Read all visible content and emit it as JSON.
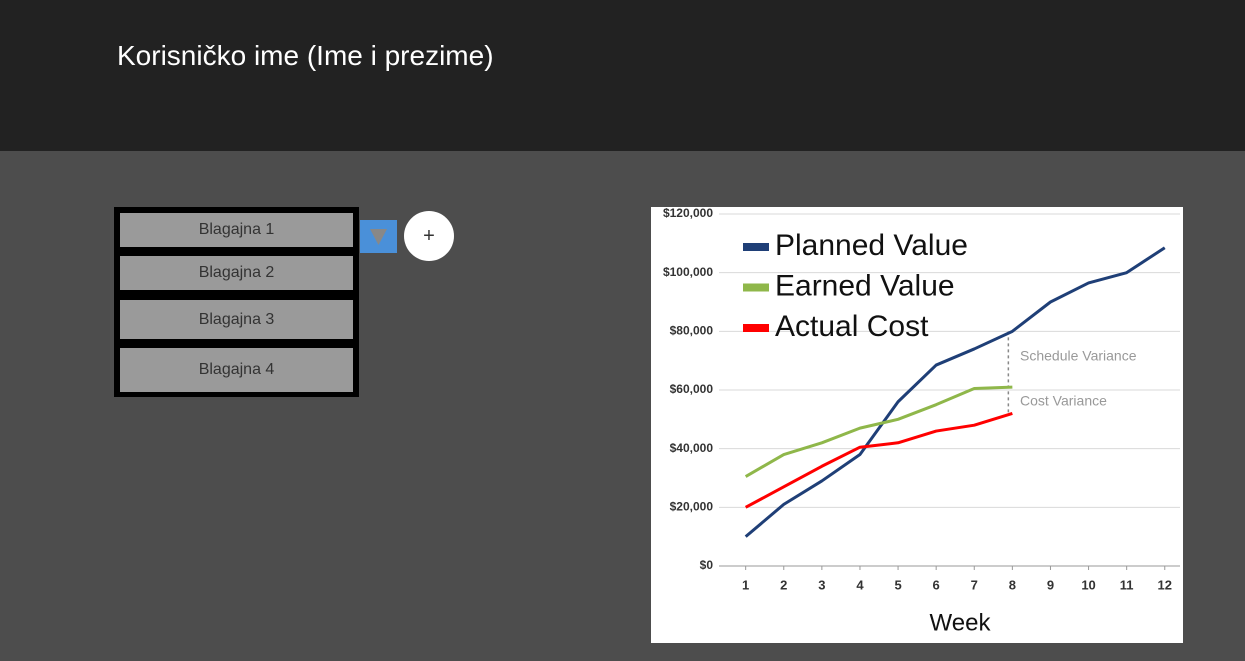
{
  "header": {
    "title": "Korisničko ime (Ime i prezime)"
  },
  "list": {
    "items": [
      "Blagajna 1",
      "Blagajna 2",
      "Blagajna 3",
      "Blagajna 4"
    ]
  },
  "add_button": "+",
  "chart_data": {
    "type": "line",
    "x_label": "Week",
    "x": [
      1,
      2,
      3,
      4,
      5,
      6,
      7,
      8,
      9,
      10,
      11,
      12
    ],
    "xlim": [
      0.3,
      12.4
    ],
    "xticks": [
      1,
      2,
      3,
      4,
      5,
      6,
      7,
      8,
      9,
      10,
      11,
      12
    ],
    "ylim": [
      0,
      120000
    ],
    "yticks": [
      {
        "value": 0,
        "label": "$0"
      },
      {
        "value": 20000,
        "label": "$20,000"
      },
      {
        "value": 40000,
        "label": "$40,000"
      },
      {
        "value": 60000,
        "label": "$60,000"
      },
      {
        "value": 80000,
        "label": "$80,000"
      },
      {
        "value": 100000,
        "label": "$100,000"
      },
      {
        "value": 120000,
        "label": "$120,000"
      }
    ],
    "grid": true,
    "legend": "top-left",
    "series": [
      {
        "name": "Planned Value",
        "color": "#1f3f77",
        "values": [
          10000,
          21000,
          29000,
          38000,
          56000,
          68500,
          74000,
          80000,
          90000,
          96500,
          100000,
          108500
        ]
      },
      {
        "name": "Earned Value",
        "color": "#8fb74a",
        "values": [
          30500,
          38000,
          42000,
          47000,
          50000,
          55000,
          60500,
          61000,
          null,
          null,
          null,
          null
        ]
      },
      {
        "name": "Actual Cost",
        "color": "#ff0000",
        "values": [
          20000,
          27000,
          34000,
          40500,
          42000,
          46000,
          48000,
          52000,
          null,
          null,
          null,
          null
        ]
      }
    ],
    "annotations": [
      "Schedule Variance",
      "Cost Variance"
    ]
  }
}
